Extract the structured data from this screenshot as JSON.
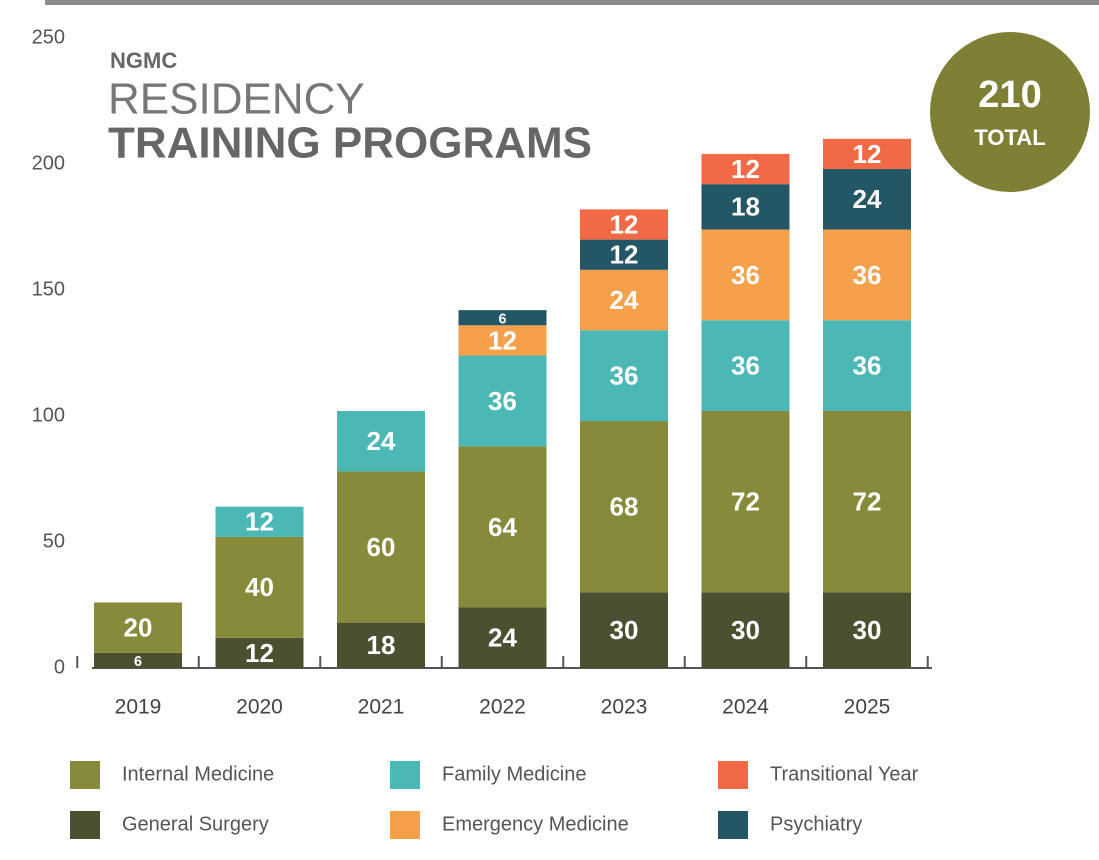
{
  "chart_data": {
    "type": "stacked_bar",
    "title_lines": [
      "NGMC",
      "RESIDENCY",
      "TRAINING PROGRAMS"
    ],
    "total": 210,
    "total_label": "TOTAL",
    "categories": [
      "2019",
      "2020",
      "2021",
      "2022",
      "2023",
      "2024",
      "2025"
    ],
    "series": [
      {
        "name": "General Surgery",
        "color": "#4d5030",
        "values": [
          6,
          12,
          18,
          24,
          30,
          30,
          30
        ]
      },
      {
        "name": "Internal Medicine",
        "color": "#868a3a",
        "values": [
          20,
          40,
          60,
          64,
          68,
          72,
          72
        ]
      },
      {
        "name": "Family Medicine",
        "color": "#4bb8b5",
        "values": [
          null,
          12,
          24,
          36,
          36,
          36,
          36
        ]
      },
      {
        "name": "Emergency Medicine",
        "color": "#f5a04b",
        "values": [
          null,
          null,
          null,
          12,
          24,
          36,
          36
        ]
      },
      {
        "name": "Psychiatry",
        "color": "#245766",
        "values": [
          null,
          null,
          null,
          6,
          12,
          18,
          24
        ]
      },
      {
        "name": "Transitional Year",
        "color": "#f26a45",
        "values": [
          null,
          null,
          null,
          null,
          12,
          12,
          12
        ]
      }
    ],
    "ylim": [
      0,
      250
    ],
    "yticks": [
      0,
      50,
      100,
      150,
      200,
      250
    ],
    "grid": false
  }
}
